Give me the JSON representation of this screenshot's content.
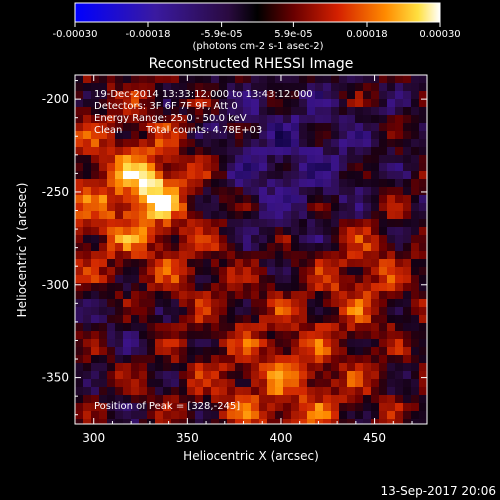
{
  "chart_data": {
    "type": "heatmap",
    "title": "Reconstructed RHESSI Image",
    "xlabel": "Heliocentric X (arcsec)",
    "ylabel": "Heliocentric Y (arcsec)",
    "xlim": [
      290,
      478
    ],
    "ylim": [
      -375,
      -187
    ],
    "x_ticks": [
      "300",
      "350",
      "400",
      "450"
    ],
    "y_ticks": [
      "-200",
      "-250",
      "-300",
      "-350"
    ],
    "colorbar": {
      "range": [
        -0.0003,
        0.0003
      ],
      "tick_labels": [
        "-0.00030",
        "-0.00018",
        "-5.9e-05",
        "5.9e-05",
        "0.00018",
        "0.00030"
      ],
      "unit_label": "(photons cm-2 s-1 asec-2)"
    },
    "annotations": {
      "time_range": "19-Dec-2014 13:33:12.000 to 13:43:12.000",
      "detectors": "Detectors: 3F 6F 7F 9F, Att 0",
      "energy_range": "Energy Range: 25.0 - 50.0 keV",
      "algorithm": "Clean",
      "total_counts": "Total counts: 4.78E+03",
      "peak": "Position of Peak = [328,-245]"
    },
    "peak_position": [
      328,
      -245
    ],
    "footer_date": "13-Sep-2017 20:06"
  }
}
